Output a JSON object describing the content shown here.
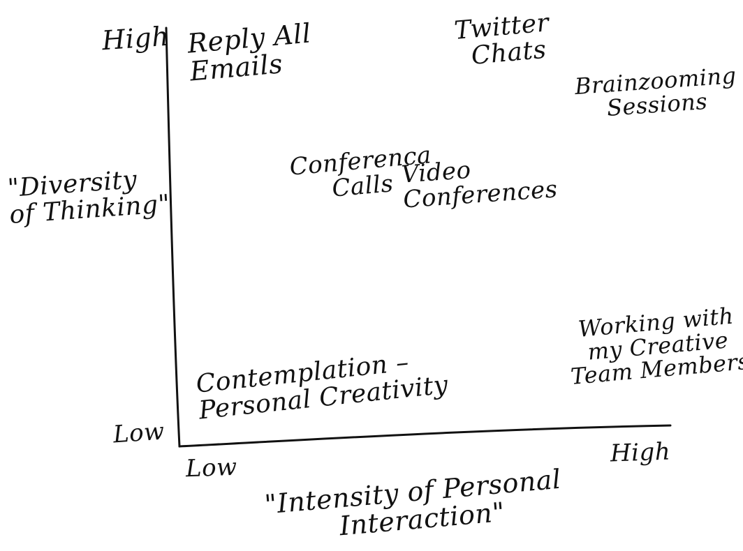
{
  "axes": {
    "y_high": "High",
    "y_low": "Low",
    "x_low": "Low",
    "x_high": "High",
    "y_title_lines": [
      "\"Diversity",
      "of Thinking\""
    ],
    "x_title_lines": [
      "\"Intensity of Personal",
      "Interaction\""
    ]
  },
  "items": [
    {
      "id": "reply-all-emails",
      "lines": [
        "Reply All",
        "Emails"
      ]
    },
    {
      "id": "twitter-chats",
      "lines": [
        "Twitter",
        "Chats"
      ]
    },
    {
      "id": "brainzooming-sessions",
      "lines": [
        "Brainzooming",
        "Sessions"
      ]
    },
    {
      "id": "conference-calls",
      "lines": [
        "Conferenca",
        "Calls"
      ]
    },
    {
      "id": "video-conferences",
      "lines": [
        "Video",
        "Conferences"
      ]
    },
    {
      "id": "contemplation",
      "lines": [
        "Contemplation –",
        "Personal Creativity"
      ]
    },
    {
      "id": "working-with-team",
      "lines": [
        "Working with",
        "my Creative",
        "Team Members"
      ]
    }
  ],
  "colors": {
    "ink": "#111111",
    "background": "#ffffff"
  }
}
